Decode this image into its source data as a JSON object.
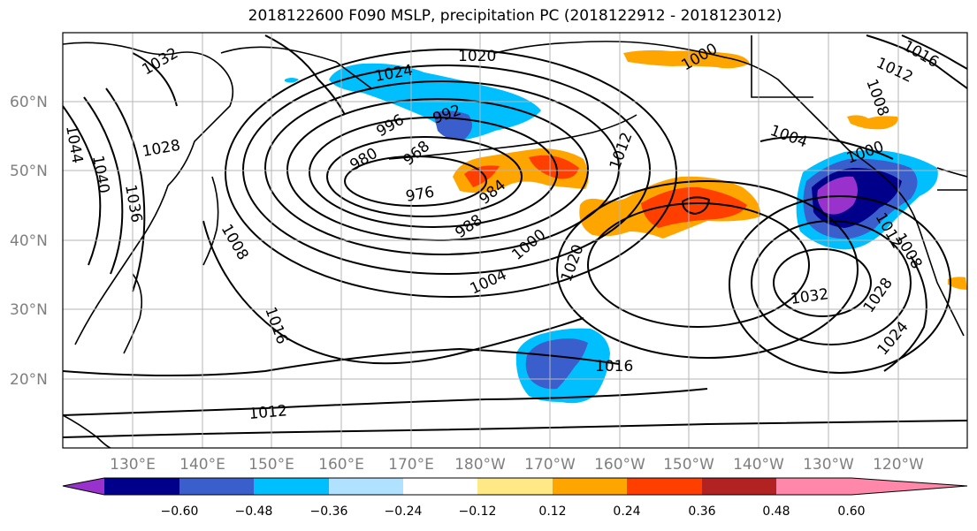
{
  "title": "2018122600 F090 MSLP, precipitation PC (2018122912 - 2018123012)",
  "axes": {
    "lat_labels": [
      "60°N",
      "50°N",
      "40°N",
      "30°N",
      "20°N"
    ],
    "lon_labels": [
      "130°E",
      "140°E",
      "150°E",
      "160°E",
      "170°E",
      "180°W",
      "170°W",
      "160°W",
      "150°W",
      "140°W",
      "130°W",
      "120°W"
    ],
    "grid": true
  },
  "contour_labels": [
    "1032",
    "1024",
    "1020",
    "992",
    "996",
    "1028",
    "968",
    "1044",
    "980",
    "1040",
    "976",
    "1036",
    "984",
    "1008",
    "988",
    "1000",
    "1004",
    "1016",
    "1012",
    "1020",
    "1016",
    "1000",
    "1004",
    "1008",
    "1012",
    "1016",
    "1000",
    "1012",
    "1008",
    "1032",
    "1028",
    "1024",
    "1016",
    "1012"
  ],
  "colorbar": {
    "colors": [
      "#9932cc",
      "#00008b",
      "#3a5fcd",
      "#00bfff",
      "#b0e2ff",
      "#ffffff",
      "#ffe987",
      "#ffa500",
      "#ff3f00",
      "#b22222",
      "#ff88aa"
    ],
    "tick_labels": [
      "−0.60",
      "−0.48",
      "−0.36",
      "−0.24",
      "−0.12",
      "0.12",
      "0.24",
      "0.36",
      "0.48",
      "0.60"
    ]
  }
}
